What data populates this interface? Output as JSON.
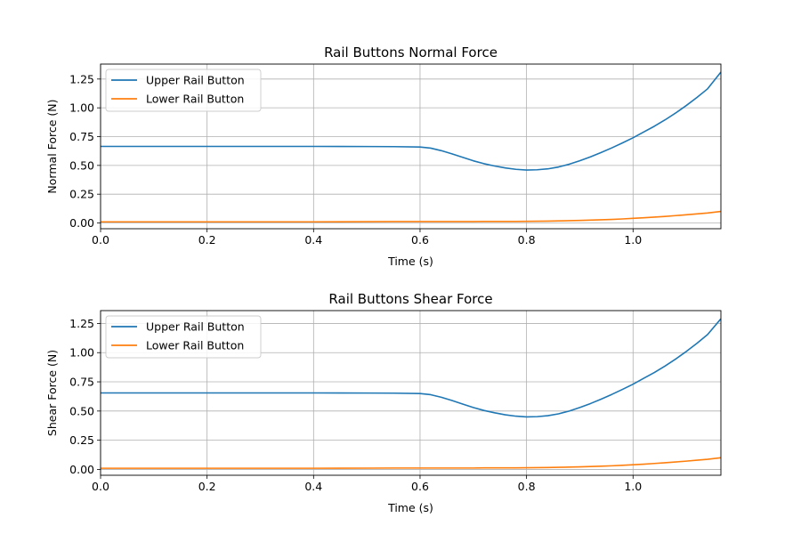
{
  "chart_data": [
    {
      "type": "line",
      "title": "Rail Buttons Normal Force",
      "xlabel": "Time (s)",
      "ylabel": "Normal Force (N)",
      "xlim": [
        0,
        1.165
      ],
      "ylim": [
        -0.05,
        1.38
      ],
      "xticks": [
        "0.0",
        "0.2",
        "0.4",
        "0.6",
        "0.8",
        "1.0"
      ],
      "yticks": [
        "0.00",
        "0.25",
        "0.50",
        "0.75",
        "1.00",
        "1.25"
      ],
      "grid": true,
      "legend_position": "upper-left",
      "x": [
        0.0,
        0.1,
        0.2,
        0.3,
        0.4,
        0.5,
        0.55,
        0.6,
        0.62,
        0.64,
        0.66,
        0.68,
        0.7,
        0.72,
        0.74,
        0.76,
        0.78,
        0.8,
        0.82,
        0.84,
        0.86,
        0.88,
        0.9,
        0.92,
        0.94,
        0.96,
        0.98,
        1.0,
        1.02,
        1.04,
        1.06,
        1.08,
        1.1,
        1.12,
        1.14,
        1.165
      ],
      "series": [
        {
          "name": "Upper Rail Button",
          "color": "#1f77b4",
          "values": [
            0.665,
            0.665,
            0.665,
            0.665,
            0.665,
            0.664,
            0.663,
            0.66,
            0.65,
            0.628,
            0.6,
            0.57,
            0.54,
            0.515,
            0.495,
            0.478,
            0.466,
            0.46,
            0.462,
            0.47,
            0.486,
            0.51,
            0.54,
            0.574,
            0.612,
            0.652,
            0.695,
            0.74,
            0.79,
            0.84,
            0.895,
            0.955,
            1.02,
            1.09,
            1.165,
            1.31
          ]
        },
        {
          "name": "Lower Rail Button",
          "color": "#ff7f0e",
          "values": [
            0.01,
            0.01,
            0.01,
            0.01,
            0.01,
            0.011,
            0.012,
            0.012,
            0.012,
            0.012,
            0.012,
            0.012,
            0.012,
            0.013,
            0.013,
            0.013,
            0.013,
            0.014,
            0.015,
            0.016,
            0.018,
            0.02,
            0.022,
            0.025,
            0.028,
            0.031,
            0.035,
            0.04,
            0.045,
            0.051,
            0.057,
            0.064,
            0.071,
            0.079,
            0.087,
            0.1
          ]
        }
      ]
    },
    {
      "type": "line",
      "title": "Rail Buttons Shear Force",
      "xlabel": "Time (s)",
      "ylabel": "Shear Force (N)",
      "xlim": [
        0,
        1.165
      ],
      "ylim": [
        -0.05,
        1.36
      ],
      "xticks": [
        "0.0",
        "0.2",
        "0.4",
        "0.6",
        "0.8",
        "1.0"
      ],
      "yticks": [
        "0.00",
        "0.25",
        "0.50",
        "0.75",
        "1.00",
        "1.25"
      ],
      "grid": true,
      "legend_position": "upper-left",
      "x": [
        0.0,
        0.1,
        0.2,
        0.3,
        0.4,
        0.5,
        0.55,
        0.6,
        0.62,
        0.64,
        0.66,
        0.68,
        0.7,
        0.72,
        0.74,
        0.76,
        0.78,
        0.8,
        0.82,
        0.84,
        0.86,
        0.88,
        0.9,
        0.92,
        0.94,
        0.96,
        0.98,
        1.0,
        1.02,
        1.04,
        1.06,
        1.08,
        1.1,
        1.12,
        1.14,
        1.165
      ],
      "series": [
        {
          "name": "Upper Rail Button",
          "color": "#1f77b4",
          "values": [
            0.655,
            0.655,
            0.655,
            0.655,
            0.655,
            0.654,
            0.653,
            0.65,
            0.64,
            0.618,
            0.59,
            0.56,
            0.53,
            0.505,
            0.485,
            0.468,
            0.456,
            0.45,
            0.452,
            0.46,
            0.476,
            0.5,
            0.53,
            0.564,
            0.602,
            0.642,
            0.685,
            0.73,
            0.78,
            0.83,
            0.885,
            0.945,
            1.01,
            1.08,
            1.155,
            1.29
          ]
        },
        {
          "name": "Lower Rail Button",
          "color": "#ff7f0e",
          "values": [
            0.01,
            0.01,
            0.01,
            0.01,
            0.01,
            0.011,
            0.012,
            0.012,
            0.012,
            0.012,
            0.012,
            0.012,
            0.012,
            0.013,
            0.013,
            0.013,
            0.013,
            0.014,
            0.015,
            0.016,
            0.018,
            0.02,
            0.022,
            0.025,
            0.028,
            0.031,
            0.035,
            0.04,
            0.045,
            0.051,
            0.057,
            0.064,
            0.071,
            0.079,
            0.087,
            0.1
          ]
        }
      ]
    }
  ]
}
